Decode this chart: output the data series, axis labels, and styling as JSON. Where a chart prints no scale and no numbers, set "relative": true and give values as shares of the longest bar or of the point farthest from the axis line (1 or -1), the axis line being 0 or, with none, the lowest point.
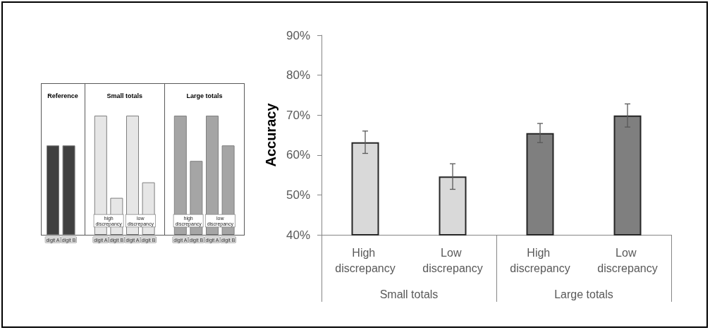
{
  "chart_data": [
    {
      "type": "bar",
      "relative": true,
      "categories": [
        "digit A",
        "digit B",
        null,
        "digit A",
        "digit B",
        "digit A",
        "digit B",
        null,
        "digit A",
        "digit B",
        "digit A",
        "digit B"
      ],
      "values": [
        0.75,
        0.75,
        null,
        1,
        0.31,
        1,
        0.44,
        null,
        1,
        0.62,
        1,
        0.75
      ],
      "colors": [
        "#404040",
        "#404040",
        null,
        "#e6e6e6",
        "#e6e6e6",
        "#e6e6e6",
        "#e6e6e6",
        null,
        "#a5a5a5",
        "#a5a5a5",
        "#a5a5a5",
        "#a5a5a5"
      ],
      "annotations": [
        "Reference",
        "Small totals",
        "Large totals",
        "high discrepancy",
        "low discrepancy",
        "high discrepancy",
        "low discrepancy"
      ]
    },
    {
      "type": "bar",
      "categories": [
        "High discrepancy",
        "Low discrepancy",
        "High discrepancy",
        "Low discrepancy"
      ],
      "values": [
        63.2,
        54.6,
        65.5,
        69.9
      ],
      "errors": [
        2.8,
        3.2,
        2.4,
        2.9
      ],
      "colors": [
        "#d9d9d9",
        "#d9d9d9",
        "#7f7f7f",
        "#7f7f7f"
      ],
      "ylabel": "Accuracy",
      "ylim": [
        40,
        90
      ],
      "yticks": [
        {
          "value": 40,
          "label": "40%"
        },
        {
          "value": 50,
          "label": "50%"
        },
        {
          "value": 60,
          "label": "60%"
        },
        {
          "value": 70,
          "label": "70%"
        },
        {
          "value": 80,
          "label": "80%"
        },
        {
          "value": 90,
          "label": "90%"
        }
      ],
      "annotations": [
        "Small totals",
        "Large totals"
      ]
    }
  ]
}
